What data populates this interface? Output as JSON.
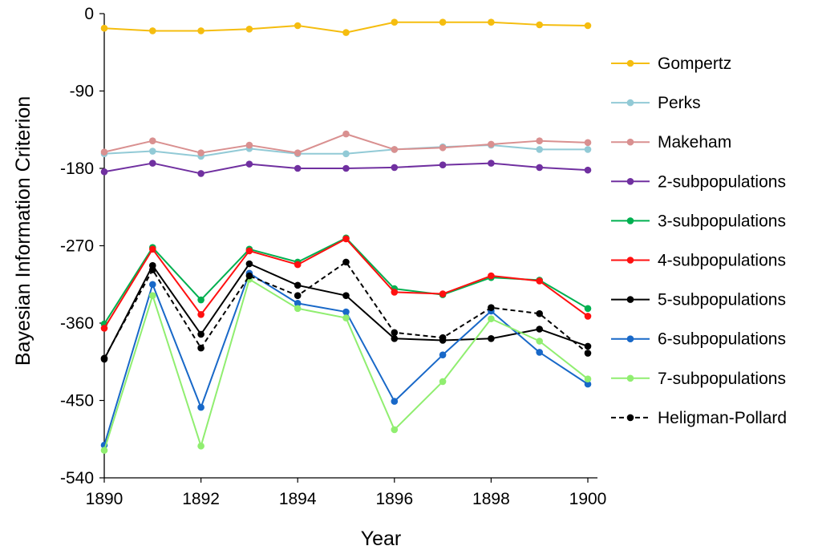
{
  "chart_data": {
    "type": "line",
    "title": "",
    "xlabel": "Year",
    "ylabel": "Bayesian Information Criterion",
    "x": [
      1890,
      1891,
      1892,
      1893,
      1894,
      1895,
      1896,
      1897,
      1898,
      1899,
      1900
    ],
    "xlim": [
      1890,
      1900
    ],
    "ylim": [
      -540,
      0
    ],
    "x_ticks": [
      "1890",
      "1892",
      "1894",
      "1896",
      "1898",
      "1900"
    ],
    "y_ticks": [
      "0",
      "-90",
      "-180",
      "-270",
      "-360",
      "-450",
      "-540"
    ],
    "grid": false,
    "legend_position": "right",
    "series": [
      {
        "name": "Gompertz",
        "color": "#F5BD0F",
        "dashed": false,
        "values": [
          -17,
          -20,
          -20,
          -18,
          -14,
          -22,
          -10,
          -10,
          -10,
          -13,
          -14
        ]
      },
      {
        "name": "Perks",
        "color": "#92CAD6",
        "dashed": false,
        "values": [
          -163,
          -160,
          -166,
          -157,
          -163,
          -163,
          -158,
          -155,
          -153,
          -158,
          -158
        ]
      },
      {
        "name": "Makeham",
        "color": "#D99090",
        "dashed": false,
        "values": [
          -161,
          -148,
          -162,
          -153,
          -162,
          -140,
          -158,
          -156,
          -152,
          -148,
          -150
        ]
      },
      {
        "name": "2-subpopulations",
        "color": "#7030A0",
        "dashed": false,
        "values": [
          -184,
          -174,
          -186,
          -175,
          -180,
          -180,
          -179,
          -176,
          -174,
          -179,
          -182
        ]
      },
      {
        "name": "3-subpopulations",
        "color": "#00B050",
        "dashed": false,
        "values": [
          -361,
          -272,
          -333,
          -274,
          -289,
          -261,
          -320,
          -327,
          -307,
          -310,
          -343
        ]
      },
      {
        "name": "4-subpopulations",
        "color": "#FF1010",
        "dashed": false,
        "values": [
          -366,
          -274,
          -350,
          -276,
          -292,
          -262,
          -324,
          -326,
          -305,
          -311,
          -352
        ]
      },
      {
        "name": "5-subpopulations",
        "color": "#000000",
        "dashed": false,
        "values": [
          -402,
          -293,
          -373,
          -291,
          -316,
          -328,
          -378,
          -380,
          -378,
          -367,
          -387
        ]
      },
      {
        "name": "6-subpopulations",
        "color": "#1868C8",
        "dashed": false,
        "values": [
          -502,
          -315,
          -458,
          -302,
          -337,
          -347,
          -451,
          -397,
          -346,
          -394,
          -431
        ]
      },
      {
        "name": "7-subpopulations",
        "color": "#90EE70",
        "dashed": false,
        "values": [
          -508,
          -328,
          -503,
          -309,
          -343,
          -354,
          -484,
          -428,
          -355,
          -381,
          -425
        ]
      },
      {
        "name": "Heligman-Pollard",
        "color": "#000000",
        "dashed": true,
        "values": [
          -401,
          -298,
          -389,
          -305,
          -328,
          -289,
          -371,
          -377,
          -342,
          -349,
          -395
        ]
      }
    ]
  }
}
